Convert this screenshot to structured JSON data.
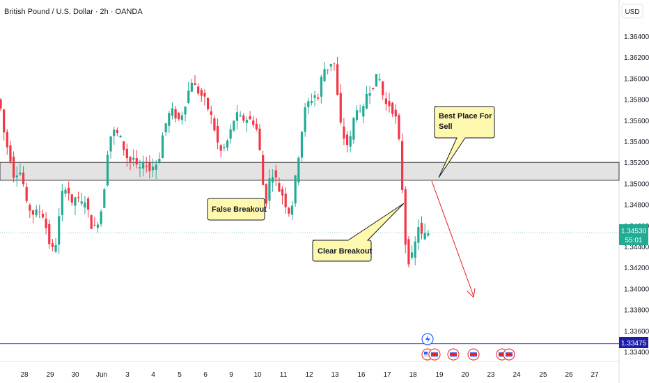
{
  "header": {
    "title": "British Pound / U.S. Dollar · 2h · OANDA",
    "currency_button": "USD"
  },
  "price_tag": {
    "price": "1.34530",
    "countdown": "55:01"
  },
  "level_tag": {
    "price": "1.33475"
  },
  "annotations": {
    "best_place": [
      "Best Place For",
      "Sell"
    ],
    "false_breakout": "False Breakout",
    "clear_breakout": "Clear Breakout"
  },
  "colors": {
    "up": "#22ab94",
    "down": "#f23645",
    "zone_fill": "#e3e3e3",
    "callout_fill": "#fff9b0",
    "level_line": "#2a2ad8",
    "arrow": "#e5201b",
    "price_tag": "#22ab94",
    "level_tag": "#1d1da8"
  },
  "chart_data": {
    "type": "candlestick",
    "symbol": "GBPUSD",
    "timeframe": "2h",
    "ylim": [
      1.333,
      1.366
    ],
    "y_ticks": [
      "1.36400",
      "1.36200",
      "1.36000",
      "1.35800",
      "1.35600",
      "1.35400",
      "1.35200",
      "1.35000",
      "1.34800",
      "1.34600",
      "1.34400",
      "1.34200",
      "1.34000",
      "1.33800",
      "1.33600",
      "1.33400"
    ],
    "x_ticks": [
      "28",
      "29",
      "30",
      "Jun",
      "3",
      "4",
      "5",
      "6",
      "9",
      "10",
      "11",
      "12",
      "13",
      "16",
      "17",
      "18",
      "19",
      "20",
      "23",
      "24",
      "25",
      "26",
      "27"
    ],
    "resistance_zone": [
      1.3503,
      1.352
    ],
    "horizontal_level": 1.33475,
    "last_price": 1.3453,
    "path": [
      [
        0,
        1.3582
      ],
      [
        6,
        1.357
      ],
      [
        12,
        1.354
      ],
      [
        18,
        1.353
      ],
      [
        24,
        1.3508
      ],
      [
        30,
        1.3512
      ],
      [
        36,
        1.351
      ],
      [
        42,
        1.348
      ],
      [
        48,
        1.3475
      ],
      [
        54,
        1.347
      ],
      [
        60,
        1.3475
      ],
      [
        66,
        1.347
      ],
      [
        72,
        1.3455
      ],
      [
        78,
        1.3435
      ],
      [
        84,
        1.344
      ],
      [
        90,
        1.347
      ],
      [
        96,
        1.35
      ],
      [
        102,
        1.3495
      ],
      [
        108,
        1.3478
      ],
      [
        114,
        1.349
      ],
      [
        120,
        1.3478
      ],
      [
        126,
        1.3486
      ],
      [
        132,
        1.347
      ],
      [
        138,
        1.3455
      ],
      [
        144,
        1.3462
      ],
      [
        150,
        1.3475
      ],
      [
        156,
        1.3505
      ],
      [
        160,
        1.3538
      ],
      [
        166,
        1.355
      ],
      [
        172,
        1.3548
      ],
      [
        178,
        1.3542
      ],
      [
        184,
        1.353
      ],
      [
        190,
        1.352
      ],
      [
        196,
        1.3525
      ],
      [
        202,
        1.3512
      ],
      [
        208,
        1.3515
      ],
      [
        214,
        1.352
      ],
      [
        220,
        1.3512
      ],
      [
        226,
        1.3518
      ],
      [
        232,
        1.352
      ],
      [
        238,
        1.3545
      ],
      [
        244,
        1.356
      ],
      [
        250,
        1.357
      ],
      [
        256,
        1.3565
      ],
      [
        262,
        1.356
      ],
      [
        268,
        1.357
      ],
      [
        274,
        1.3585
      ],
      [
        280,
        1.3598
      ],
      [
        286,
        1.359
      ],
      [
        292,
        1.3585
      ],
      [
        298,
        1.358
      ],
      [
        304,
        1.357
      ],
      [
        310,
        1.356
      ],
      [
        316,
        1.354
      ],
      [
        322,
        1.353
      ],
      [
        328,
        1.3535
      ],
      [
        334,
        1.3545
      ],
      [
        340,
        1.356
      ],
      [
        346,
        1.3565
      ],
      [
        352,
        1.356
      ],
      [
        358,
        1.3562
      ],
      [
        364,
        1.356
      ],
      [
        370,
        1.3558
      ],
      [
        376,
        1.3545
      ],
      [
        380,
        1.351
      ],
      [
        386,
        1.348
      ],
      [
        392,
        1.3505
      ],
      [
        398,
        1.3512
      ],
      [
        404,
        1.3495
      ],
      [
        410,
        1.349
      ],
      [
        416,
        1.3478
      ],
      [
        422,
        1.347
      ],
      [
        428,
        1.35
      ],
      [
        432,
        1.352
      ],
      [
        438,
        1.355
      ],
      [
        444,
        1.3575
      ],
      [
        450,
        1.3578
      ],
      [
        456,
        1.3585
      ],
      [
        462,
        1.358
      ],
      [
        468,
        1.361
      ],
      [
        474,
        1.3608
      ],
      [
        480,
        1.3615
      ],
      [
        484,
        1.3618
      ],
      [
        488,
        1.359
      ],
      [
        494,
        1.3555
      ],
      [
        500,
        1.354
      ],
      [
        506,
        1.3535
      ],
      [
        512,
        1.356
      ],
      [
        518,
        1.3575
      ],
      [
        524,
        1.356
      ],
      [
        530,
        1.3585
      ],
      [
        536,
        1.359
      ],
      [
        542,
        1.3595
      ],
      [
        548,
        1.3605
      ],
      [
        552,
        1.359
      ],
      [
        558,
        1.3575
      ],
      [
        564,
        1.3575
      ],
      [
        570,
        1.3568
      ],
      [
        576,
        1.3555
      ],
      [
        580,
        1.3515
      ],
      [
        584,
        1.348
      ],
      [
        588,
        1.343
      ],
      [
        594,
        1.3425
      ],
      [
        600,
        1.344
      ],
      [
        606,
        1.3462
      ],
      [
        612,
        1.3445
      ],
      [
        616,
        1.3453
      ]
    ]
  }
}
